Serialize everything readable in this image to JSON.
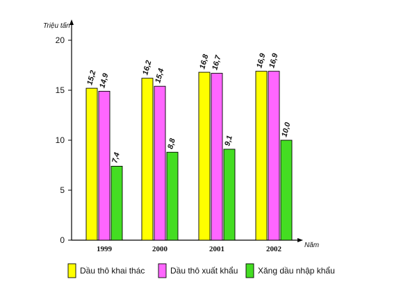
{
  "chart_data": {
    "type": "bar",
    "title": "",
    "ylabel": "Triệu tấn",
    "xlabel": "Năm",
    "categories": [
      "1999",
      "2000",
      "2001",
      "2002"
    ],
    "ylim": [
      0,
      20
    ],
    "yticks": [
      0,
      5,
      10,
      15,
      20
    ],
    "grid": false,
    "legend_position": "bottom",
    "series": [
      {
        "name": "Dầu thô khai thác",
        "color": "#ffff00",
        "values": [
          15.2,
          16.2,
          16.8,
          16.9
        ],
        "labels": [
          "15,2",
          "16,2",
          "16,8",
          "16,9"
        ]
      },
      {
        "name": "Dầu thô xuất khẩu",
        "color": "#ff66ff",
        "values": [
          14.9,
          15.4,
          16.7,
          16.9
        ],
        "labels": [
          "14,9",
          "15,4",
          "16,7",
          "16,9"
        ]
      },
      {
        "name": "Xăng dầu nhập khẩu",
        "color": "#44dd22",
        "values": [
          7.4,
          8.8,
          9.1,
          10.0
        ],
        "labels": [
          "7,4",
          "8,8",
          "9,1",
          "10,0"
        ]
      }
    ]
  }
}
